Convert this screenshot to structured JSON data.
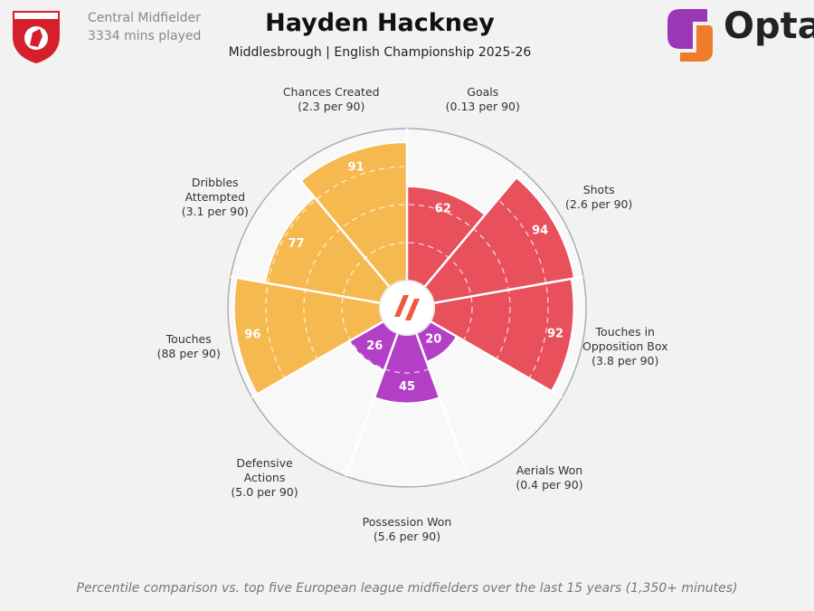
{
  "chart_data": {
    "type": "radial-bar",
    "title": "Hayden Hackney",
    "subtitle": "Middlesbrough | English Championship 2025-26",
    "position": "Central Midfielder",
    "minutes": "3334 mins played",
    "brand": "Opta",
    "footnote": "Percentile comparison vs. top five European league midfielders over the last 15 years (1,350+ minutes)",
    "categories": [
      "Goals",
      "Shots",
      "Touches in Opposition Box",
      "Aerials Won",
      "Possession Won",
      "Defensive Actions",
      "Touches",
      "Dribbles Attempted",
      "Chances Created"
    ],
    "per90": [
      "(0.13 per 90)",
      "(2.6 per 90)",
      "(3.8 per 90)",
      "(0.4 per 90)",
      "(5.6 per 90)",
      "(5.0 per 90)",
      "(88 per 90)",
      "(3.1 per 90)",
      "(2.3 per 90)"
    ],
    "values": [
      62,
      94,
      92,
      20,
      45,
      26,
      96,
      77,
      91
    ],
    "colors": [
      "#e8505b",
      "#e8505b",
      "#e8505b",
      "#b23fc6",
      "#b23fc6",
      "#b23fc6",
      "#f5b94f",
      "#f5b94f",
      "#f5b94f"
    ],
    "rlim": [
      0,
      100
    ],
    "rticks": [
      25,
      50,
      75,
      100
    ]
  }
}
